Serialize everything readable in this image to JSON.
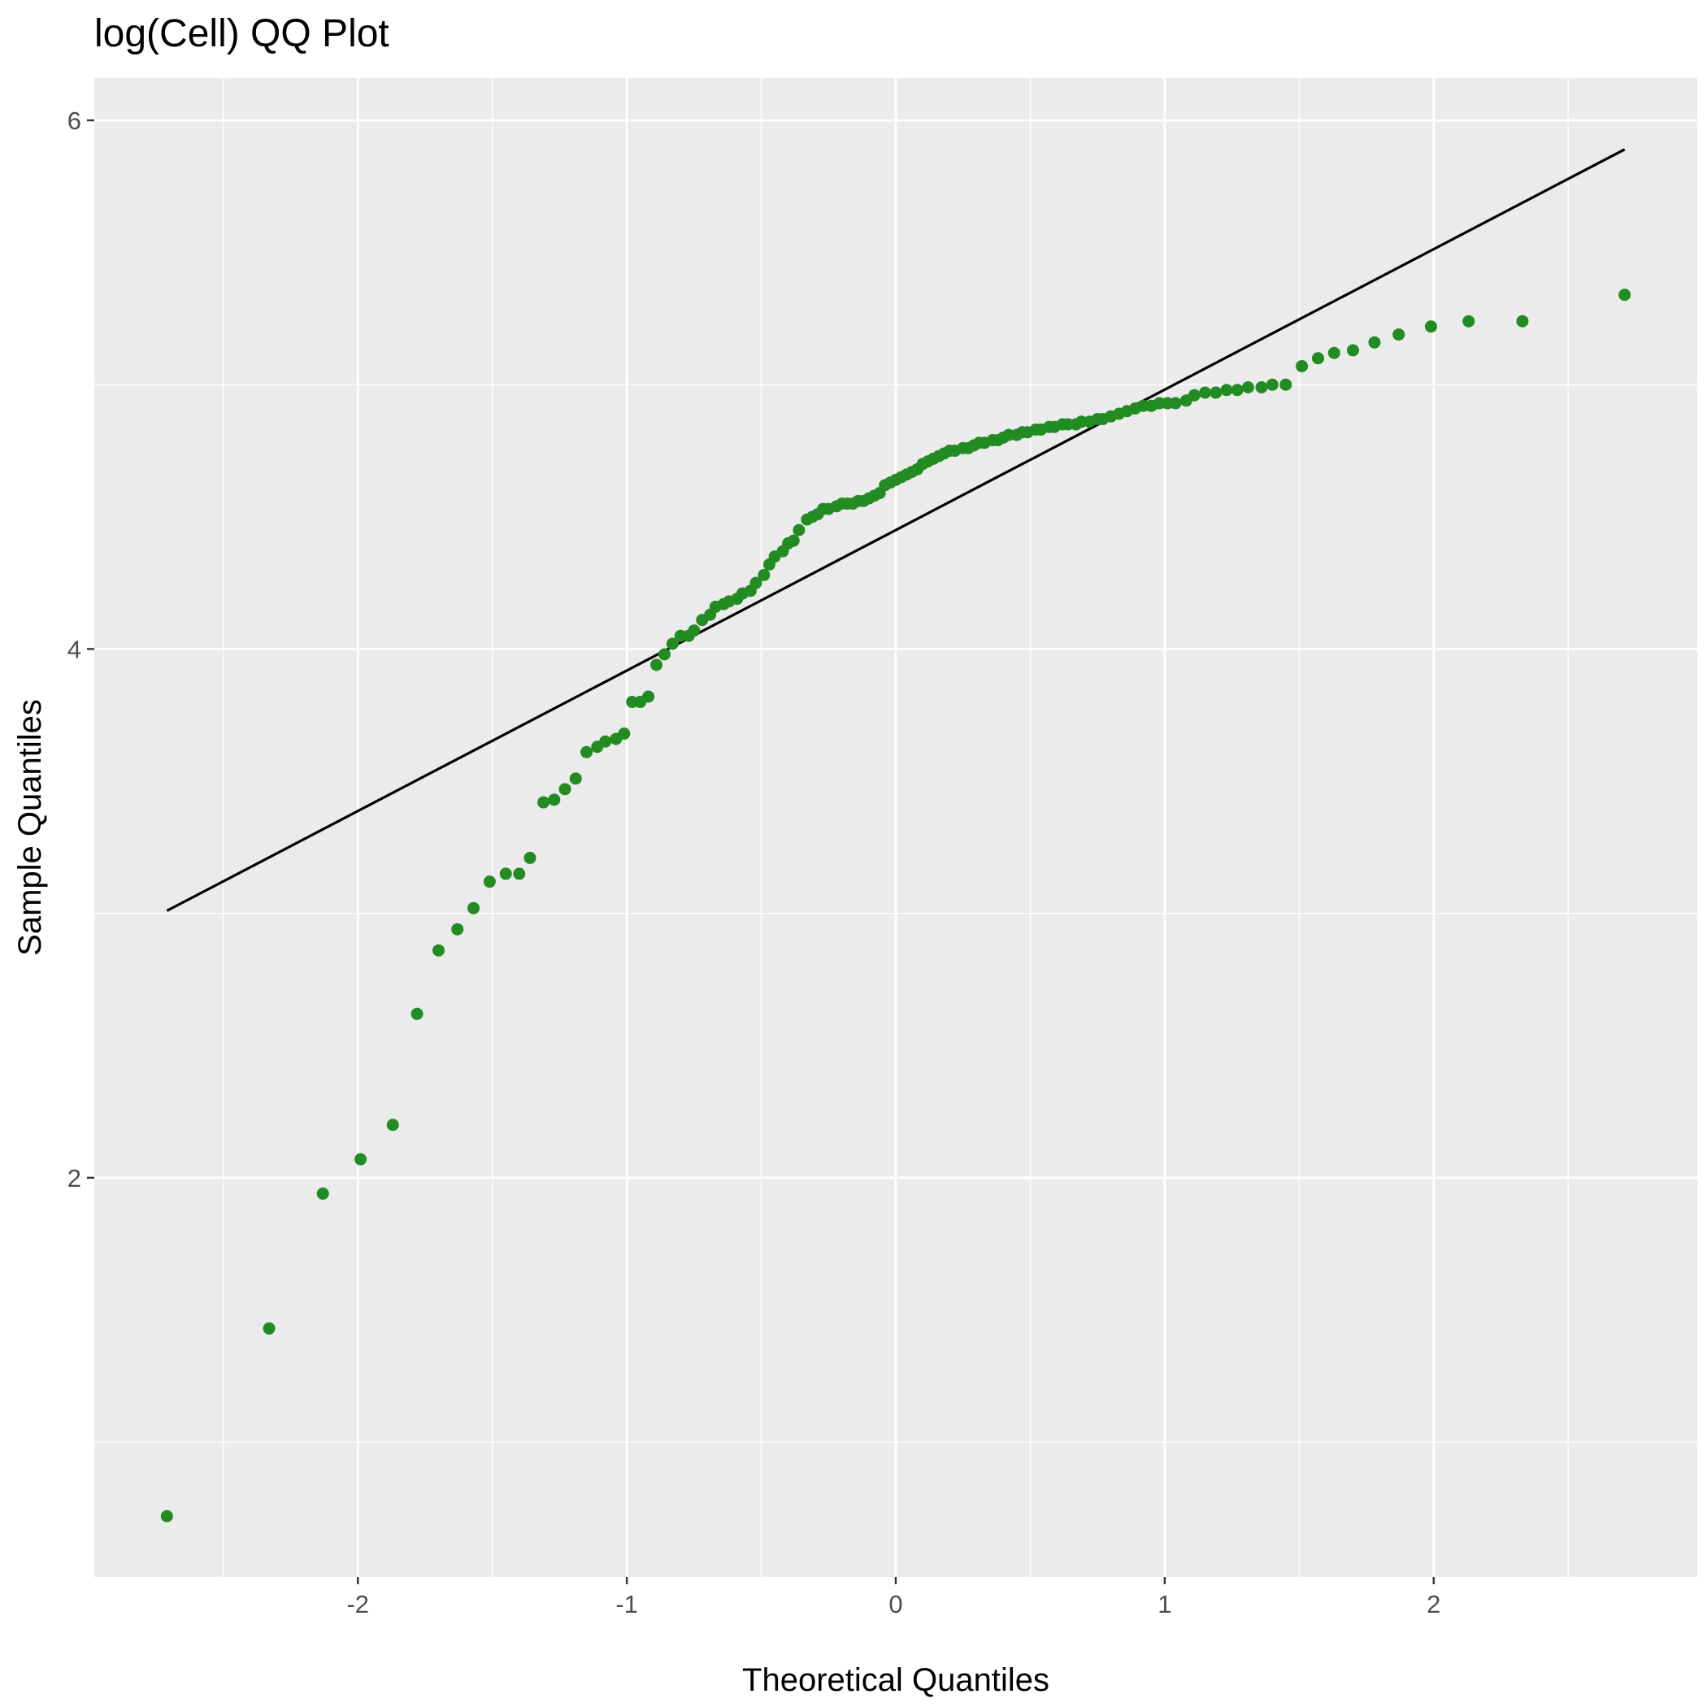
{
  "chart_data": {
    "type": "scatter",
    "title": "log(Cell) QQ Plot",
    "xlabel": "Theoretical Quantiles",
    "ylabel": "Sample Quantiles",
    "xlim": [
      -2.98,
      2.98
    ],
    "ylim": [
      0.49,
      6.16
    ],
    "xticks": [
      -2,
      -1,
      0,
      1,
      2
    ],
    "xtick_labels": [
      "-2",
      "-1",
      "0",
      "1",
      "2"
    ],
    "yticks": [
      2,
      4,
      6
    ],
    "ytick_labels": [
      "2",
      "4",
      "6"
    ],
    "grid": true,
    "colors": {
      "points": "#228B22",
      "line": "#000000",
      "panel": "#EBEBEB",
      "grid": "#FFFFFF"
    },
    "reference_line": {
      "x": [
        -2.71,
        2.71
      ],
      "y": [
        3.01,
        5.89
      ]
    },
    "series": [
      {
        "x": [
          -2.71,
          -2.33,
          -2.13,
          -1.99,
          -1.87,
          -1.78,
          -1.7,
          -1.63,
          -1.57,
          -1.51,
          -1.45,
          -1.4,
          -1.36,
          -1.31,
          -1.27,
          -1.23,
          -1.19,
          -1.15,
          -1.11,
          -1.08,
          -1.04,
          -1.01,
          -0.98,
          -0.95,
          -0.92,
          -0.89,
          -0.86,
          -0.83,
          -0.8,
          -0.77,
          -0.75,
          -0.72,
          -0.69,
          -0.67,
          -0.64,
          -0.62,
          -0.59,
          -0.57,
          -0.54,
          -0.52,
          -0.49,
          -0.47,
          -0.45,
          -0.42,
          -0.4,
          -0.38,
          -0.36,
          -0.33,
          -0.31,
          -0.29,
          -0.27,
          -0.25,
          -0.22,
          -0.2,
          -0.18,
          -0.16,
          -0.14,
          -0.12,
          -0.1,
          -0.08,
          -0.06,
          -0.04,
          -0.02,
          0.0,
          0.02,
          0.04,
          0.06,
          0.08,
          0.1,
          0.12,
          0.14,
          0.16,
          0.18,
          0.2,
          0.22,
          0.25,
          0.27,
          0.29,
          0.31,
          0.33,
          0.36,
          0.38,
          0.4,
          0.42,
          0.45,
          0.47,
          0.49,
          0.52,
          0.54,
          0.57,
          0.59,
          0.62,
          0.64,
          0.67,
          0.69,
          0.72,
          0.75,
          0.77,
          0.8,
          0.83,
          0.86,
          0.89,
          0.92,
          0.95,
          0.98,
          1.01,
          1.04,
          1.08,
          1.11,
          1.15,
          1.19,
          1.23,
          1.27,
          1.31,
          1.36,
          1.4,
          1.45,
          1.51,
          1.57,
          1.63,
          1.7,
          1.78,
          1.87,
          1.99,
          2.13,
          2.33,
          2.71
        ],
        "y": [
          0.72,
          1.43,
          1.94,
          2.07,
          2.2,
          2.62,
          2.86,
          2.94,
          3.02,
          3.12,
          3.15,
          3.15,
          3.21,
          3.42,
          3.43,
          3.47,
          3.51,
          3.61,
          3.63,
          3.65,
          3.66,
          3.68,
          3.8,
          3.8,
          3.82,
          3.94,
          3.98,
          4.02,
          4.05,
          4.05,
          4.07,
          4.11,
          4.13,
          4.16,
          4.17,
          4.18,
          4.19,
          4.21,
          4.22,
          4.25,
          4.28,
          4.32,
          4.35,
          4.37,
          4.4,
          4.41,
          4.45,
          4.49,
          4.5,
          4.51,
          4.53,
          4.53,
          4.54,
          4.55,
          4.55,
          4.55,
          4.56,
          4.56,
          4.57,
          4.58,
          4.59,
          4.62,
          4.63,
          4.64,
          4.65,
          4.66,
          4.67,
          4.68,
          4.7,
          4.71,
          4.72,
          4.73,
          4.74,
          4.75,
          4.75,
          4.76,
          4.76,
          4.77,
          4.78,
          4.78,
          4.79,
          4.79,
          4.8,
          4.81,
          4.81,
          4.82,
          4.82,
          4.83,
          4.83,
          4.84,
          4.84,
          4.85,
          4.85,
          4.85,
          4.86,
          4.86,
          4.87,
          4.87,
          4.88,
          4.89,
          4.9,
          4.91,
          4.92,
          4.92,
          4.93,
          4.93,
          4.93,
          4.94,
          4.96,
          4.97,
          4.97,
          4.98,
          4.98,
          4.99,
          4.99,
          5.0,
          5.0,
          5.07,
          5.1,
          5.12,
          5.13,
          5.16,
          5.19,
          5.22,
          5.24,
          5.24,
          5.34
        ]
      }
    ]
  }
}
